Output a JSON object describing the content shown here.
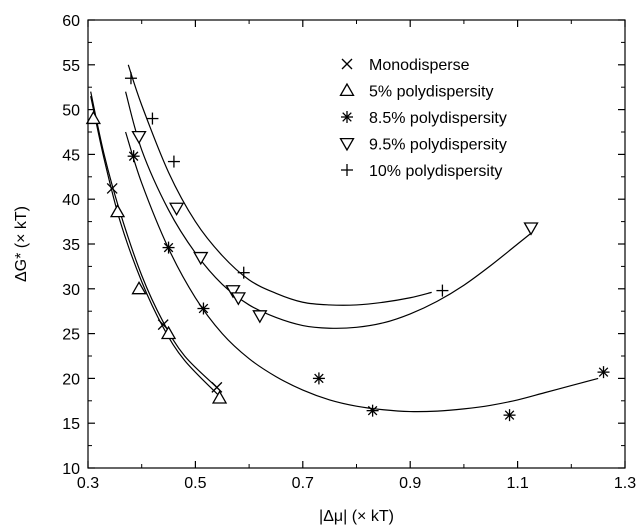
{
  "chart_data": {
    "type": "scatter",
    "xlabel": "|Δμ| (× kT)",
    "ylabel": "ΔG* (× kT)",
    "xlim": [
      0.3,
      1.3
    ],
    "ylim": [
      10,
      60
    ],
    "x_ticks": [
      0.3,
      0.5,
      0.7,
      0.9,
      1.1,
      1.3
    ],
    "x_tick_labels": [
      "0.3",
      "0.5",
      "0.7",
      "0.9",
      "1.1",
      "1.3"
    ],
    "y_ticks": [
      10,
      15,
      20,
      25,
      30,
      35,
      40,
      45,
      50,
      55,
      60
    ],
    "y_tick_labels": [
      "10",
      "15",
      "20",
      "25",
      "30",
      "35",
      "40",
      "45",
      "50",
      "55",
      "60"
    ],
    "grid": false,
    "legend_position": "top-right",
    "series": [
      {
        "name": "Monodisperse",
        "marker": "x",
        "points": [
          [
            0.345,
            41.2
          ],
          [
            0.44,
            26.0
          ],
          [
            0.54,
            19.0
          ]
        ],
        "fit": [
          [
            0.305,
            52
          ],
          [
            0.33,
            45
          ],
          [
            0.36,
            38.5
          ],
          [
            0.4,
            31.5
          ],
          [
            0.44,
            26.3
          ],
          [
            0.48,
            22.5
          ],
          [
            0.54,
            19.0
          ]
        ]
      },
      {
        "name": "5% polydispersity",
        "marker": "triangle-up",
        "points": [
          [
            0.31,
            49.0
          ],
          [
            0.355,
            38.6
          ],
          [
            0.395,
            30.0
          ],
          [
            0.45,
            25.0
          ],
          [
            0.545,
            17.8
          ]
        ],
        "fit": [
          [
            0.305,
            51.5
          ],
          [
            0.33,
            44.5
          ],
          [
            0.36,
            37.5
          ],
          [
            0.4,
            30.8
          ],
          [
            0.44,
            25.7
          ],
          [
            0.48,
            22.0
          ],
          [
            0.545,
            18.0
          ]
        ]
      },
      {
        "name": "8.5% polydispersity",
        "marker": "asterisk",
        "points": [
          [
            0.385,
            44.8
          ],
          [
            0.45,
            34.6
          ],
          [
            0.515,
            27.8
          ],
          [
            0.73,
            20.0
          ],
          [
            0.83,
            16.4
          ],
          [
            1.085,
            15.9
          ],
          [
            1.26,
            20.7
          ]
        ],
        "fit": [
          [
            0.37,
            47.5
          ],
          [
            0.4,
            41.8
          ],
          [
            0.45,
            34.5
          ],
          [
            0.5,
            29.0
          ],
          [
            0.55,
            25.0
          ],
          [
            0.6,
            22.2
          ],
          [
            0.65,
            20.2
          ],
          [
            0.7,
            18.7
          ],
          [
            0.75,
            17.6
          ],
          [
            0.8,
            16.9
          ],
          [
            0.85,
            16.5
          ],
          [
            0.9,
            16.3
          ],
          [
            0.95,
            16.35
          ],
          [
            1.0,
            16.6
          ],
          [
            1.05,
            17.0
          ],
          [
            1.1,
            17.6
          ],
          [
            1.15,
            18.4
          ],
          [
            1.2,
            19.2
          ],
          [
            1.25,
            20.0
          ]
        ]
      },
      {
        "name": "9.5% polydispersity",
        "marker": "triangle-down",
        "points": [
          [
            0.395,
            47.0
          ],
          [
            0.465,
            39.0
          ],
          [
            0.51,
            33.5
          ],
          [
            0.57,
            29.8
          ],
          [
            0.58,
            29.0
          ],
          [
            0.62,
            27.0
          ],
          [
            1.125,
            36.8
          ]
        ],
        "fit": [
          [
            0.37,
            52.0
          ],
          [
            0.4,
            45.5
          ],
          [
            0.45,
            38.8
          ],
          [
            0.5,
            34.0
          ],
          [
            0.55,
            30.5
          ],
          [
            0.6,
            28.2
          ],
          [
            0.65,
            26.8
          ],
          [
            0.7,
            25.9
          ],
          [
            0.75,
            25.6
          ],
          [
            0.8,
            25.7
          ],
          [
            0.85,
            26.2
          ],
          [
            0.9,
            27.2
          ],
          [
            0.95,
            28.6
          ],
          [
            1.0,
            30.4
          ],
          [
            1.05,
            32.6
          ],
          [
            1.1,
            35.0
          ],
          [
            1.125,
            36.2
          ]
        ]
      },
      {
        "name": "10% polydispersity",
        "marker": "plus",
        "points": [
          [
            0.38,
            53.5
          ],
          [
            0.42,
            49.0
          ],
          [
            0.46,
            44.2
          ],
          [
            0.59,
            31.8
          ],
          [
            0.96,
            29.8
          ]
        ],
        "fit": [
          [
            0.375,
            55.0
          ],
          [
            0.4,
            50.5
          ],
          [
            0.45,
            43.0
          ],
          [
            0.5,
            37.5
          ],
          [
            0.55,
            33.7
          ],
          [
            0.6,
            31.0
          ],
          [
            0.65,
            29.5
          ],
          [
            0.7,
            28.5
          ],
          [
            0.75,
            28.2
          ],
          [
            0.8,
            28.2
          ],
          [
            0.85,
            28.5
          ],
          [
            0.9,
            29.0
          ],
          [
            0.94,
            29.6
          ]
        ]
      }
    ]
  }
}
